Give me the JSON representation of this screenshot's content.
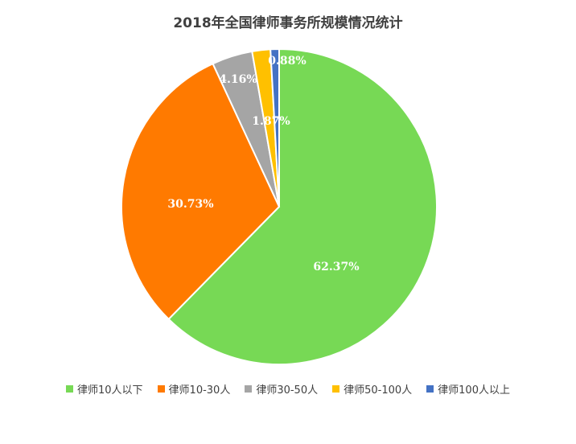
{
  "chart_data": {
    "type": "pie",
    "title": "2018年全国律师事务所规模情况统计",
    "categories": [
      "律师10人以下",
      "律师10-30人",
      "律师30-50人",
      "律师50-100人",
      "律师100人以上"
    ],
    "values": [
      62.37,
      30.73,
      4.16,
      1.87,
      0.88
    ],
    "data_labels": [
      "62.37%",
      "30.73%",
      "4.16%",
      "1.87%",
      "0.88%"
    ],
    "colors": [
      "#77d955",
      "#ff7a00",
      "#a5a5a5",
      "#ffc000",
      "#4472c4"
    ],
    "legend_position": "bottom",
    "start_angle": "12 o'clock",
    "direction": "clockwise"
  }
}
